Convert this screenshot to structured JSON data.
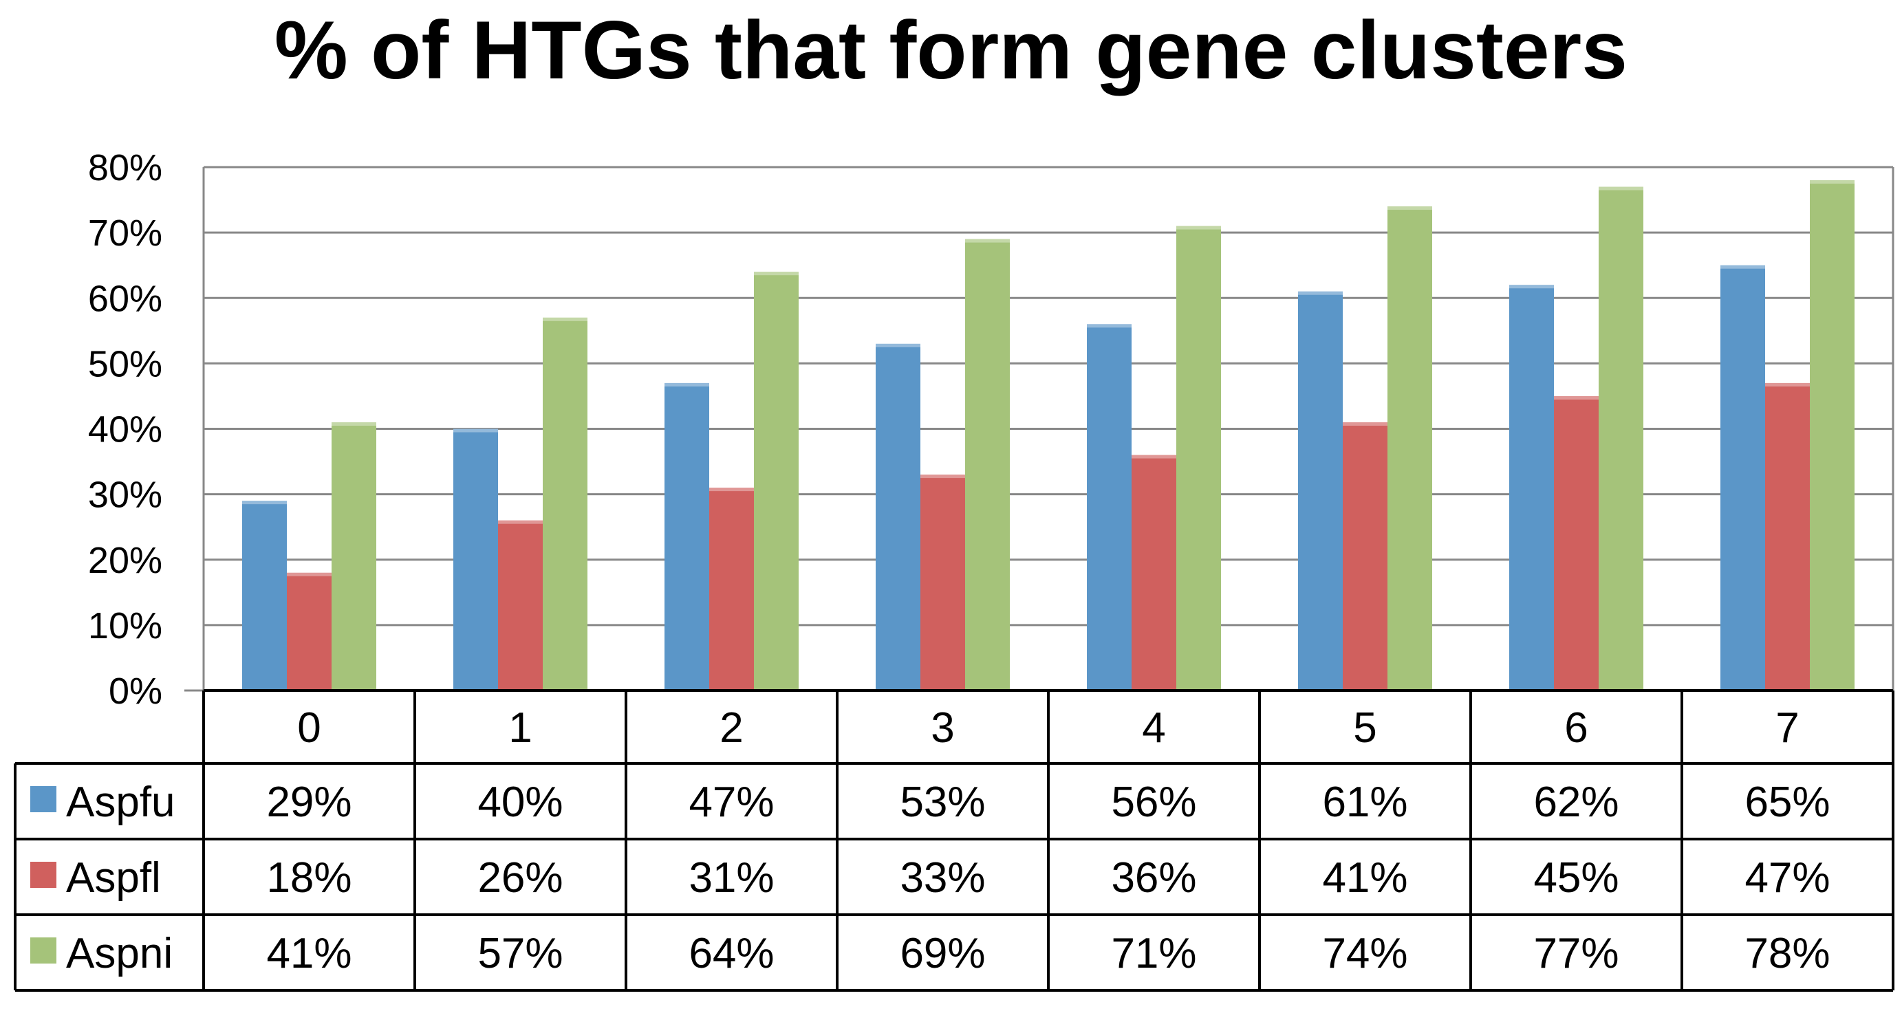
{
  "chart_data": {
    "type": "bar",
    "title": "% of HTGs that form gene clusters",
    "categories": [
      "0",
      "1",
      "2",
      "3",
      "4",
      "5",
      "6",
      "7"
    ],
    "series": [
      {
        "name": "Aspfu",
        "color": "#5b96c8",
        "values": [
          29,
          40,
          47,
          53,
          56,
          61,
          62,
          65
        ],
        "labels": [
          "29%",
          "40%",
          "47%",
          "53%",
          "56%",
          "61%",
          "62%",
          "65%"
        ]
      },
      {
        "name": "Aspfl",
        "color": "#d0605e",
        "values": [
          18,
          26,
          31,
          33,
          36,
          41,
          45,
          47
        ],
        "labels": [
          "18%",
          "26%",
          "31%",
          "33%",
          "36%",
          "41%",
          "45%",
          "47%"
        ]
      },
      {
        "name": "Aspni",
        "color": "#a5c37a",
        "values": [
          41,
          57,
          64,
          69,
          71,
          74,
          77,
          78
        ],
        "labels": [
          "41%",
          "57%",
          "64%",
          "69%",
          "71%",
          "74%",
          "77%",
          "78%"
        ]
      }
    ],
    "yticks": [
      "0%",
      "10%",
      "20%",
      "30%",
      "40%",
      "50%",
      "60%",
      "70%",
      "80%"
    ],
    "ylim": [
      0,
      80
    ],
    "grid": true,
    "legend": "data-table"
  }
}
